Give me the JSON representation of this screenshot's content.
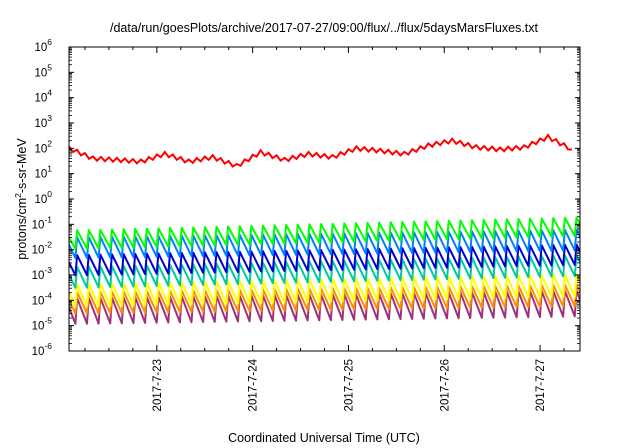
{
  "chart_data": {
    "type": "line",
    "title": "/data/run/goesPlots/archive/2017-07-27/09:00/flux/../flux/5daysMarsFluxes.txt",
    "xlabel": "Coordinated Universal Time (UTC)",
    "ylabel": "protons/cm²-s-sr-MeV",
    "ylabel_parts": {
      "pre": "protons/cm",
      "sup": "2",
      "post": "-s-sr-MeV"
    },
    "yscale": "log",
    "ylim": [
      1e-06,
      1000000.0
    ],
    "y_ticks": [
      {
        "base": "10",
        "exp": "-6"
      },
      {
        "base": "10",
        "exp": "-5"
      },
      {
        "base": "10",
        "exp": "-4"
      },
      {
        "base": "10",
        "exp": "-3"
      },
      {
        "base": "10",
        "exp": "-2"
      },
      {
        "base": "10",
        "exp": "-1"
      },
      {
        "base": "10",
        "exp": "0"
      },
      {
        "base": "10",
        "exp": "1"
      },
      {
        "base": "10",
        "exp": "2"
      },
      {
        "base": "10",
        "exp": "3"
      },
      {
        "base": "10",
        "exp": "4"
      },
      {
        "base": "10",
        "exp": "5"
      },
      {
        "base": "10",
        "exp": "6"
      }
    ],
    "xlim": [
      "2017-07-22 02:00",
      "2017-07-27 10:00"
    ],
    "x_ticks": [
      "2017-7-23",
      "2017-7-24",
      "2017-7-25",
      "2017-7-26",
      "2017-7-27"
    ],
    "grid": false,
    "legend": "none",
    "series": [
      {
        "color": "#ff0000",
        "x": [
          "2017-07-22 02:00",
          "2017-07-22 08:00",
          "2017-07-22 14:00",
          "2017-07-22 20:00",
          "2017-07-23 02:00",
          "2017-07-23 08:00",
          "2017-07-23 14:00",
          "2017-07-23 20:00",
          "2017-07-24 02:00",
          "2017-07-24 08:00",
          "2017-07-24 14:00",
          "2017-07-24 20:00",
          "2017-07-25 02:00",
          "2017-07-25 08:00",
          "2017-07-25 14:00",
          "2017-07-25 20:00",
          "2017-07-26 02:00",
          "2017-07-26 08:00",
          "2017-07-26 14:00",
          "2017-07-26 20:00",
          "2017-07-27 02:00",
          "2017-07-27 08:00"
        ],
        "values": [
          100,
          40,
          35,
          30,
          60,
          30,
          45,
          20,
          70,
          35,
          60,
          45,
          100,
          80,
          60,
          130,
          200,
          110,
          90,
          110,
          280,
          90
        ]
      },
      {
        "color": "#00ff00",
        "values_range": [
          0.012,
          0.12
        ],
        "trend": [
          0.03,
          0.1
        ]
      },
      {
        "color": "#0080ff",
        "values_range": [
          0.003,
          0.04
        ],
        "trend": [
          0.015,
          0.03
        ]
      },
      {
        "color": "#0000cd",
        "values_range": [
          0.0008,
          0.01
        ],
        "trend": [
          0.003,
          0.008
        ]
      },
      {
        "color": "#00c8a0",
        "values_range": [
          0.0003,
          0.004
        ],
        "trend": [
          0.001,
          0.003
        ]
      },
      {
        "color": "#ffff00",
        "values_range": [
          5e-05,
          0.0008
        ],
        "trend": [
          0.0002,
          0.0005
        ]
      },
      {
        "color": "#ff8c00",
        "values_range": [
          2e-05,
          0.0003
        ],
        "trend": [
          0.0001,
          0.0002
        ]
      },
      {
        "color": "#a0307a",
        "values_range": [
          8e-06,
          0.0002
        ],
        "trend": [
          5e-05,
          0.0001
        ]
      }
    ]
  }
}
